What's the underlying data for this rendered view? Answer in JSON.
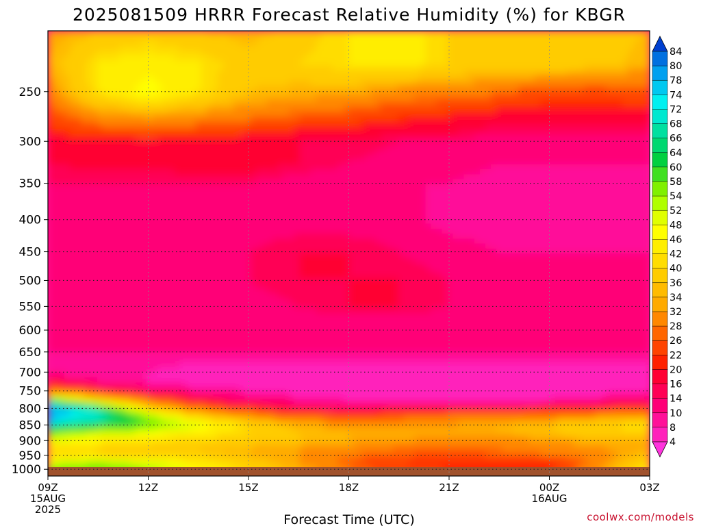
{
  "chart_data": {
    "type": "heatmap",
    "title": "2025081509 HRRR Forecast Relative Humidity (%) for KBGR",
    "xlabel": "Forecast Time (UTC)",
    "ylabel": "",
    "credit": "coolwx.com/models",
    "x_hours": [
      0,
      3,
      6,
      9,
      12,
      15,
      18
    ],
    "x_ticks": [
      {
        "hour": 0,
        "lines": [
          "09Z",
          "15AUG",
          "2025"
        ]
      },
      {
        "hour": 3,
        "lines": [
          "12Z"
        ]
      },
      {
        "hour": 6,
        "lines": [
          "15Z"
        ]
      },
      {
        "hour": 9,
        "lines": [
          "18Z"
        ]
      },
      {
        "hour": 12,
        "lines": [
          "21Z"
        ]
      },
      {
        "hour": 15,
        "lines": [
          "00Z",
          "16AUG"
        ]
      },
      {
        "hour": 18,
        "lines": [
          "03Z"
        ]
      }
    ],
    "y_ticks": [
      250,
      300,
      350,
      400,
      450,
      500,
      550,
      600,
      650,
      700,
      750,
      800,
      850,
      900,
      950,
      1000
    ],
    "y_labels": [
      "250",
      "300",
      "350",
      "400",
      "450",
      "500",
      "550",
      "600",
      "650",
      "700",
      "750",
      "800",
      "850",
      "900",
      "950",
      "1000"
    ],
    "y_range_hpa": [
      200,
      1025
    ],
    "y_scale": "log",
    "y_reversed": true,
    "grid": "dotted",
    "colorbar": {
      "placement": "right",
      "levels": [
        4,
        8,
        10,
        14,
        16,
        20,
        22,
        26,
        28,
        32,
        34,
        36,
        40,
        42,
        46,
        48,
        52,
        54,
        58,
        60,
        64,
        66,
        68,
        72,
        74,
        78,
        80,
        84
      ],
      "labels": [
        "4",
        "8",
        "10",
        "14",
        "16",
        "20",
        "22",
        "26",
        "28",
        "32",
        "34",
        "36",
        "40",
        "42",
        "46",
        "48",
        "52",
        "54",
        "58",
        "60",
        "64",
        "66",
        "68",
        "72",
        "74",
        "78",
        "80",
        "84"
      ],
      "colors": [
        "#ff33dd",
        "#ff22bb",
        "#ff1199",
        "#ff0077",
        "#ff0055",
        "#ff0033",
        "#ff2200",
        "#ff4400",
        "#ff6600",
        "#ff8800",
        "#ffaa00",
        "#ffbb00",
        "#ffcc00",
        "#ffdd00",
        "#ffee00",
        "#ffff00",
        "#e0ff00",
        "#b0ff00",
        "#80f000",
        "#40e020",
        "#00d040",
        "#00d870",
        "#00e0a0",
        "#00e8d0",
        "#00f0f0",
        "#00c8f0",
        "#00a0f0",
        "#0070e0",
        "#0040d0"
      ],
      "under_color": "#ff33dd",
      "over_color": "#0040d0"
    },
    "rh_grid": {
      "pressure_hpa": [
        200,
        225,
        250,
        275,
        300,
        325,
        350,
        400,
        450,
        500,
        550,
        600,
        650,
        700,
        725,
        750,
        775,
        800,
        825,
        850,
        875,
        900,
        925,
        950,
        975,
        1000
      ],
      "hours": [
        0,
        1.5,
        3,
        4.5,
        6,
        7.5,
        9,
        10.5,
        12,
        13.5,
        15,
        16.5,
        18
      ],
      "values": [
        [
          32,
          36,
          38,
          36,
          34,
          38,
          42,
          44,
          40,
          38,
          38,
          38,
          36
        ],
        [
          34,
          42,
          44,
          42,
          38,
          40,
          42,
          44,
          40,
          38,
          40,
          38,
          34
        ],
        [
          30,
          42,
          48,
          42,
          36,
          34,
          34,
          30,
          30,
          28,
          24,
          24,
          26
        ],
        [
          24,
          30,
          32,
          30,
          28,
          26,
          24,
          22,
          20,
          18,
          18,
          18,
          18
        ],
        [
          18,
          20,
          20,
          20,
          18,
          16,
          16,
          14,
          14,
          12,
          12,
          12,
          12
        ],
        [
          16,
          17,
          17,
          18,
          18,
          16,
          14,
          12,
          12,
          10,
          10,
          10,
          10
        ],
        [
          14,
          14,
          14,
          14,
          14,
          12,
          12,
          10,
          10,
          8,
          8,
          8,
          8
        ],
        [
          12,
          12,
          12,
          12,
          12,
          12,
          12,
          12,
          8,
          8,
          8,
          8,
          8
        ],
        [
          12,
          12,
          12,
          12,
          14,
          16,
          16,
          14,
          12,
          10,
          10,
          10,
          10
        ],
        [
          12,
          12,
          12,
          12,
          14,
          16,
          16,
          16,
          14,
          12,
          10,
          10,
          10
        ],
        [
          12,
          12,
          12,
          12,
          12,
          14,
          16,
          16,
          14,
          12,
          10,
          10,
          10
        ],
        [
          10,
          10,
          10,
          10,
          10,
          10,
          10,
          10,
          10,
          10,
          10,
          10,
          10
        ],
        [
          10,
          10,
          10,
          10,
          10,
          10,
          10,
          10,
          10,
          10,
          10,
          10,
          10
        ],
        [
          8,
          8,
          8,
          6,
          6,
          6,
          6,
          6,
          6,
          6,
          6,
          6,
          6
        ],
        [
          18,
          10,
          8,
          6,
          6,
          6,
          6,
          6,
          6,
          6,
          6,
          6,
          6
        ],
        [
          30,
          22,
          14,
          10,
          8,
          6,
          6,
          6,
          6,
          6,
          6,
          6,
          8
        ],
        [
          60,
          40,
          28,
          18,
          12,
          10,
          8,
          8,
          8,
          8,
          8,
          10,
          14
        ],
        [
          80,
          66,
          40,
          28,
          22,
          16,
          14,
          16,
          18,
          18,
          20,
          20,
          24
        ],
        [
          78,
          70,
          56,
          40,
          32,
          28,
          24,
          26,
          30,
          30,
          30,
          32,
          34
        ],
        [
          68,
          64,
          58,
          50,
          40,
          34,
          32,
          32,
          32,
          34,
          36,
          40,
          42
        ],
        [
          56,
          52,
          48,
          44,
          40,
          36,
          34,
          34,
          34,
          34,
          36,
          38,
          40
        ],
        [
          48,
          44,
          42,
          40,
          38,
          36,
          34,
          32,
          30,
          30,
          32,
          34,
          34
        ],
        [
          42,
          40,
          38,
          36,
          34,
          32,
          30,
          28,
          28,
          28,
          30,
          32,
          34
        ],
        [
          40,
          40,
          38,
          38,
          34,
          32,
          28,
          26,
          24,
          26,
          28,
          30,
          36
        ],
        [
          50,
          54,
          50,
          44,
          38,
          32,
          26,
          22,
          20,
          20,
          20,
          30,
          40
        ],
        [
          56,
          58,
          54,
          46,
          40,
          34,
          28,
          24,
          22,
          22,
          22,
          32,
          44
        ]
      ]
    },
    "ground_color": "#a0522d"
  }
}
